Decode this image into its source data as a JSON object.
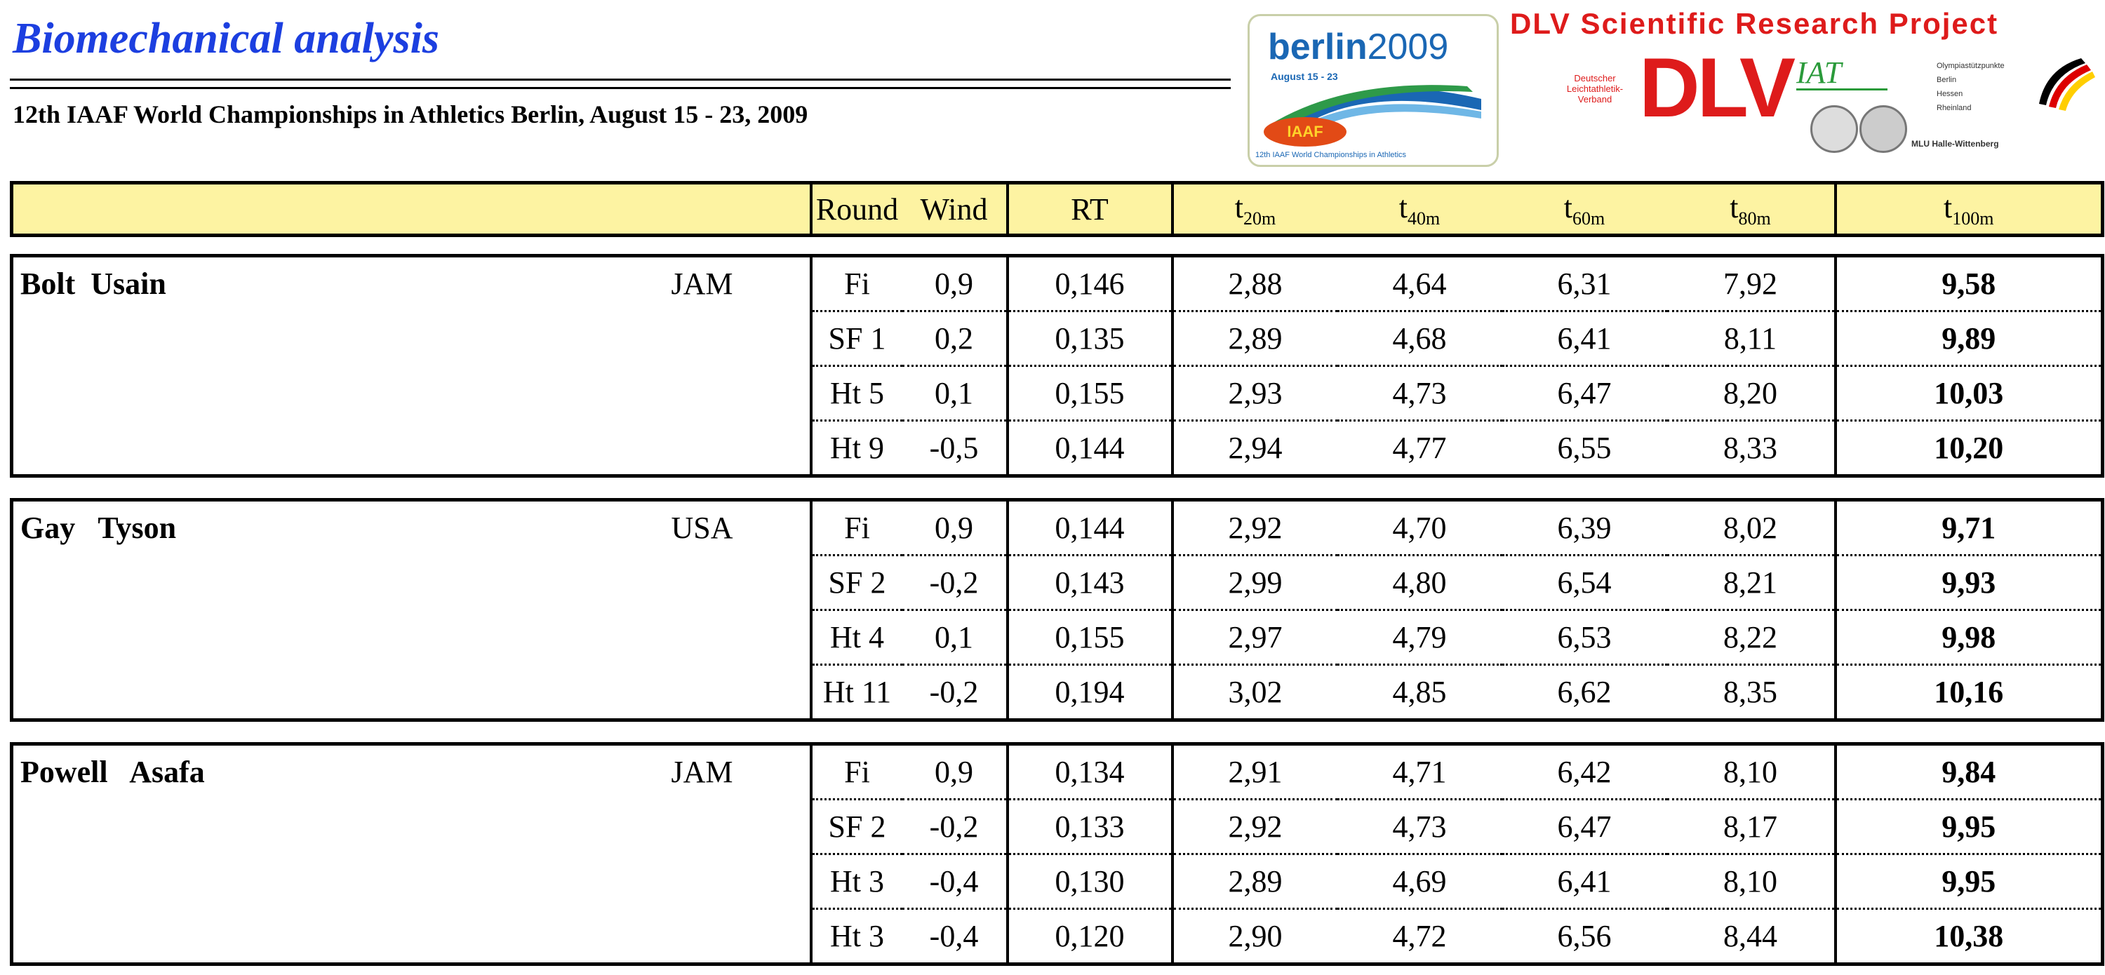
{
  "header": {
    "title": "Biomechanical analysis",
    "subtitle": "12th IAAF World Championships in Athletics Berlin, August 15 - 23, 2009"
  },
  "logos": {
    "berlin": {
      "name": "berlin",
      "year": "2009",
      "dates": "August 15 - 23",
      "badge": "IAAF",
      "footer": "12th IAAF World Championships in Athletics"
    },
    "dlv_heading": "DLV Scientific Research Project",
    "dlv_small": "Deutscher Leichtathletik-Verband",
    "dlv_logo": "DLV",
    "iat": "IAT",
    "osp": [
      "Olympiastützpunkte",
      "Berlin",
      "Hessen",
      "Rheinland"
    ],
    "mlu": "MLU Halle-Wittenberg"
  },
  "table": {
    "columns": {
      "round": "Round",
      "wind": "Wind",
      "rt": "RT",
      "t20": {
        "base": "t",
        "sub": "20m"
      },
      "t40": {
        "base": "t",
        "sub": "40m"
      },
      "t60": {
        "base": "t",
        "sub": "60m"
      },
      "t80": {
        "base": "t",
        "sub": "80m"
      },
      "t100": {
        "base": "t",
        "sub": "100m"
      }
    },
    "athletes": [
      {
        "name": "Bolt  Usain",
        "nat": "JAM",
        "runs": [
          {
            "round": "Fi",
            "wind": "0,9",
            "rt": "0,146",
            "t20": "2,88",
            "t40": "4,64",
            "t60": "6,31",
            "t80": "7,92",
            "t100": "9,58"
          },
          {
            "round": "SF 1",
            "wind": "0,2",
            "rt": "0,135",
            "t20": "2,89",
            "t40": "4,68",
            "t60": "6,41",
            "t80": "8,11",
            "t100": "9,89"
          },
          {
            "round": "Ht 5",
            "wind": "0,1",
            "rt": "0,155",
            "t20": "2,93",
            "t40": "4,73",
            "t60": "6,47",
            "t80": "8,20",
            "t100": "10,03"
          },
          {
            "round": "Ht 9",
            "wind": "-0,5",
            "rt": "0,144",
            "t20": "2,94",
            "t40": "4,77",
            "t60": "6,55",
            "t80": "8,33",
            "t100": "10,20"
          }
        ]
      },
      {
        "name": "Gay   Tyson",
        "nat": "USA",
        "runs": [
          {
            "round": "Fi",
            "wind": "0,9",
            "rt": "0,144",
            "t20": "2,92",
            "t40": "4,70",
            "t60": "6,39",
            "t80": "8,02",
            "t100": "9,71"
          },
          {
            "round": "SF 2",
            "wind": "-0,2",
            "rt": "0,143",
            "t20": "2,99",
            "t40": "4,80",
            "t60": "6,54",
            "t80": "8,21",
            "t100": "9,93"
          },
          {
            "round": "Ht 4",
            "wind": "0,1",
            "rt": "0,155",
            "t20": "2,97",
            "t40": "4,79",
            "t60": "6,53",
            "t80": "8,22",
            "t100": "9,98"
          },
          {
            "round": "Ht 11",
            "wind": "-0,2",
            "rt": "0,194",
            "t20": "3,02",
            "t40": "4,85",
            "t60": "6,62",
            "t80": "8,35",
            "t100": "10,16"
          }
        ]
      },
      {
        "name": "Powell   Asafa",
        "nat": "JAM",
        "runs": [
          {
            "round": "Fi",
            "wind": "0,9",
            "rt": "0,134",
            "t20": "2,91",
            "t40": "4,71",
            "t60": "6,42",
            "t80": "8,10",
            "t100": "9,84"
          },
          {
            "round": "SF 2",
            "wind": "-0,2",
            "rt": "0,133",
            "t20": "2,92",
            "t40": "4,73",
            "t60": "6,47",
            "t80": "8,17",
            "t100": "9,95"
          },
          {
            "round": "Ht 3",
            "wind": "-0,4",
            "rt": "0,130",
            "t20": "2,89",
            "t40": "4,69",
            "t60": "6,41",
            "t80": "8,10",
            "t100": "9,95"
          },
          {
            "round": "Ht 3",
            "wind": "-0,4",
            "rt": "0,120",
            "t20": "2,90",
            "t40": "4,72",
            "t60": "6,56",
            "t80": "8,44",
            "t100": "10,38"
          }
        ]
      }
    ]
  }
}
